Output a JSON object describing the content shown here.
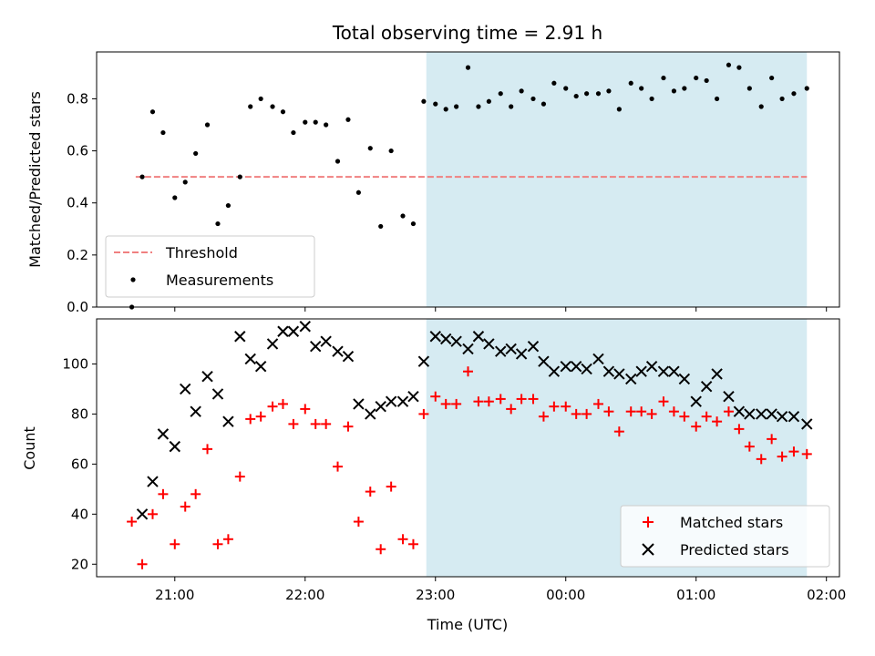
{
  "chart_data": {
    "title": "Total observing time = 2.91 h",
    "xlabel": "Time (UTC)",
    "x_unit": "hours after 00:00 UTC (negative = previous evening)",
    "xlim": [
      -3.6,
      2.1
    ],
    "xticks": [
      {
        "value": -3,
        "label": "21:00"
      },
      {
        "value": -2,
        "label": "22:00"
      },
      {
        "value": -1,
        "label": "23:00"
      },
      {
        "value": 0,
        "label": "00:00"
      },
      {
        "value": 1,
        "label": "01:00"
      },
      {
        "value": 2,
        "label": "02:00"
      }
    ],
    "shaded_span": {
      "x0": -1.07,
      "x1": 1.85,
      "color": "#add8e6"
    },
    "top": {
      "type": "scatter",
      "ylabel": "Matched/Predicted stars",
      "ylim": [
        0,
        0.98
      ],
      "yticks": [
        0.0,
        0.2,
        0.4,
        0.6,
        0.8
      ],
      "ytick_labels": [
        "0.0",
        "0.2",
        "0.4",
        "0.6",
        "0.8"
      ],
      "legend": {
        "position": "lower-left",
        "entries": [
          "Threshold",
          "Measurements"
        ]
      },
      "threshold": {
        "name": "Threshold",
        "y": 0.5,
        "x0": -3.3,
        "x1": 1.85,
        "color": "#f08080"
      },
      "measurements": {
        "name": "Measurements",
        "color": "#000000",
        "x": [
          -3.33,
          -3.25,
          -3.17,
          -3.09,
          -3.0,
          -2.92,
          -2.84,
          -2.75,
          -2.67,
          -2.59,
          -2.5,
          -2.42,
          -2.34,
          -2.25,
          -2.17,
          -2.09,
          -2.0,
          -1.92,
          -1.84,
          -1.75,
          -1.67,
          -1.59,
          -1.5,
          -1.42,
          -1.34,
          -1.25,
          -1.17,
          -1.09,
          -1.0,
          -0.92,
          -0.84,
          -0.75,
          -0.67,
          -0.59,
          -0.5,
          -0.42,
          -0.34,
          -0.25,
          -0.17,
          -0.09,
          0.0,
          0.08,
          0.16,
          0.25,
          0.33,
          0.41,
          0.5,
          0.58,
          0.66,
          0.75,
          0.83,
          0.91,
          1.0,
          1.08,
          1.16,
          1.25,
          1.33,
          1.41,
          1.5,
          1.58,
          1.66,
          1.75,
          1.85
        ],
        "y": [
          0.0,
          0.5,
          0.75,
          0.67,
          0.42,
          0.48,
          0.59,
          0.7,
          0.32,
          0.39,
          0.5,
          0.77,
          0.8,
          0.77,
          0.75,
          0.67,
          0.71,
          0.71,
          0.7,
          0.56,
          0.72,
          0.44,
          0.61,
          0.31,
          0.6,
          0.35,
          0.32,
          0.79,
          0.78,
          0.76,
          0.77,
          0.92,
          0.77,
          0.79,
          0.82,
          0.77,
          0.83,
          0.8,
          0.78,
          0.86,
          0.84,
          0.81,
          0.82,
          0.82,
          0.83,
          0.76,
          0.86,
          0.84,
          0.8,
          0.88,
          0.83,
          0.84,
          0.88,
          0.87,
          0.8,
          0.93,
          0.92,
          0.84,
          0.77,
          0.88,
          0.8,
          0.82,
          0.84
        ]
      }
    },
    "bottom": {
      "type": "scatter",
      "ylabel": "Count",
      "ylim": [
        15,
        118
      ],
      "yticks": [
        20,
        40,
        60,
        80,
        100
      ],
      "ytick_labels": [
        "20",
        "40",
        "60",
        "80",
        "100"
      ],
      "legend": {
        "position": "lower-right",
        "entries": [
          "Matched stars",
          "Predicted stars"
        ]
      },
      "series": [
        {
          "name": "Matched stars",
          "marker": "plus",
          "color": "#ff0000",
          "x": [
            -3.33,
            -3.25,
            -3.17,
            -3.09,
            -3.0,
            -2.92,
            -2.84,
            -2.75,
            -2.67,
            -2.59,
            -2.5,
            -2.42,
            -2.34,
            -2.25,
            -2.17,
            -2.09,
            -2.0,
            -1.92,
            -1.84,
            -1.75,
            -1.67,
            -1.59,
            -1.5,
            -1.42,
            -1.34,
            -1.25,
            -1.17,
            -1.09,
            -1.0,
            -0.92,
            -0.84,
            -0.75,
            -0.67,
            -0.59,
            -0.5,
            -0.42,
            -0.34,
            -0.25,
            -0.17,
            -0.09,
            0.0,
            0.08,
            0.16,
            0.25,
            0.33,
            0.41,
            0.5,
            0.58,
            0.66,
            0.75,
            0.83,
            0.91,
            1.0,
            1.08,
            1.16,
            1.25,
            1.33,
            1.41,
            1.5,
            1.58,
            1.66,
            1.75,
            1.85
          ],
          "y": [
            37,
            20,
            40,
            48,
            28,
            43,
            48,
            66,
            28,
            30,
            55,
            78,
            79,
            83,
            84,
            76,
            82,
            76,
            76,
            59,
            75,
            37,
            49,
            26,
            51,
            30,
            28,
            80,
            87,
            84,
            84,
            97,
            85,
            85,
            86,
            82,
            86,
            86,
            79,
            83,
            83,
            80,
            80,
            84,
            81,
            73,
            81,
            81,
            80,
            85,
            81,
            79,
            75,
            79,
            77,
            81,
            74,
            67,
            62,
            70,
            63,
            65,
            64
          ]
        },
        {
          "name": "Predicted stars",
          "marker": "x",
          "color": "#000000",
          "x": [
            -3.25,
            -3.17,
            -3.09,
            -3.0,
            -2.92,
            -2.84,
            -2.75,
            -2.67,
            -2.59,
            -2.5,
            -2.42,
            -2.34,
            -2.25,
            -2.17,
            -2.09,
            -2.0,
            -1.92,
            -1.84,
            -1.75,
            -1.67,
            -1.59,
            -1.5,
            -1.42,
            -1.34,
            -1.25,
            -1.17,
            -1.09,
            -1.0,
            -0.92,
            -0.84,
            -0.75,
            -0.67,
            -0.59,
            -0.5,
            -0.42,
            -0.34,
            -0.25,
            -0.17,
            -0.09,
            0.0,
            0.08,
            0.16,
            0.25,
            0.33,
            0.41,
            0.5,
            0.58,
            0.66,
            0.75,
            0.83,
            0.91,
            1.0,
            1.08,
            1.16,
            1.25,
            1.33,
            1.41,
            1.5,
            1.58,
            1.66,
            1.75,
            1.85
          ],
          "y": [
            40,
            53,
            72,
            67,
            90,
            81,
            95,
            88,
            77,
            111,
            102,
            99,
            108,
            113,
            113,
            115,
            107,
            109,
            105,
            103,
            84,
            80,
            83,
            85,
            85,
            87,
            101,
            111,
            110,
            109,
            106,
            111,
            108,
            105,
            106,
            104,
            107,
            101,
            97,
            99,
            99,
            98,
            102,
            97,
            96,
            94,
            97,
            99,
            97,
            97,
            94,
            85,
            91,
            96,
            87,
            81,
            80,
            80,
            80,
            79,
            79,
            76
          ]
        }
      ]
    }
  }
}
